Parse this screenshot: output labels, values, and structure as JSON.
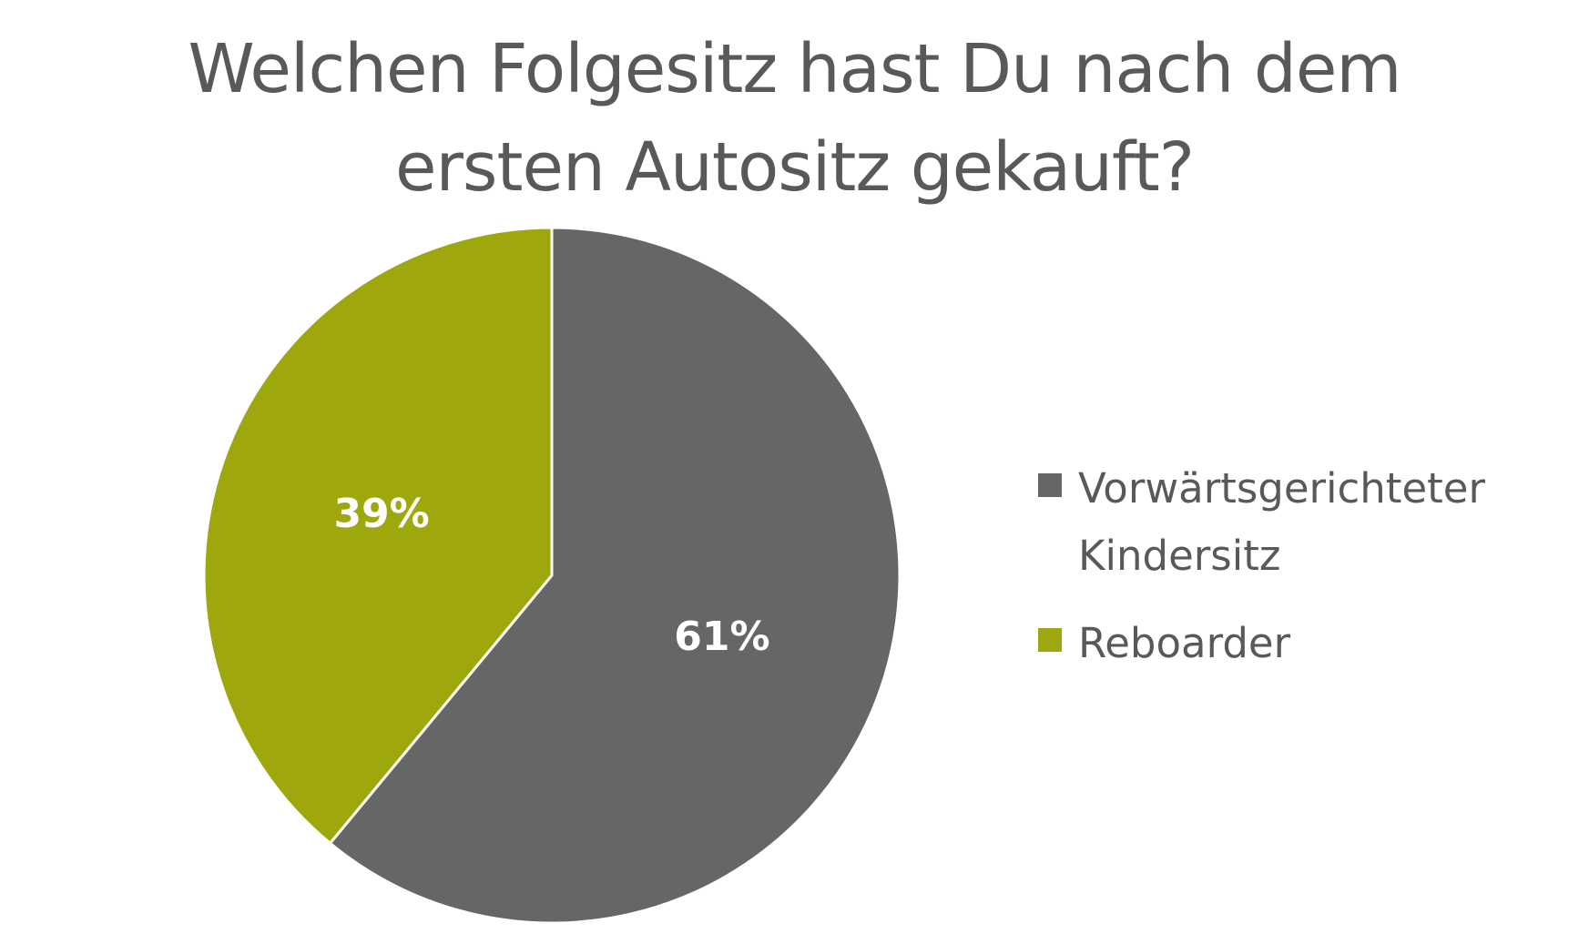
{
  "chart_data": {
    "type": "pie",
    "title_lines": [
      "Welchen Folgesitz hast Du nach dem",
      "ersten Autositz gekauft?"
    ],
    "slices": [
      {
        "label_lines": [
          "Vorwärtsgerichteter",
          "Kindersitz"
        ],
        "value": 61,
        "data_label": "61%",
        "color": "#666666"
      },
      {
        "label_lines": [
          "Reboarder"
        ],
        "value": 39,
        "data_label": "39%",
        "color": "#9EA80C"
      }
    ],
    "legend_position": "right",
    "start_angle": "12 o'clock",
    "direction": "clockwise",
    "data_label_color": "#ffffff",
    "separator_color": "#ffffff"
  }
}
